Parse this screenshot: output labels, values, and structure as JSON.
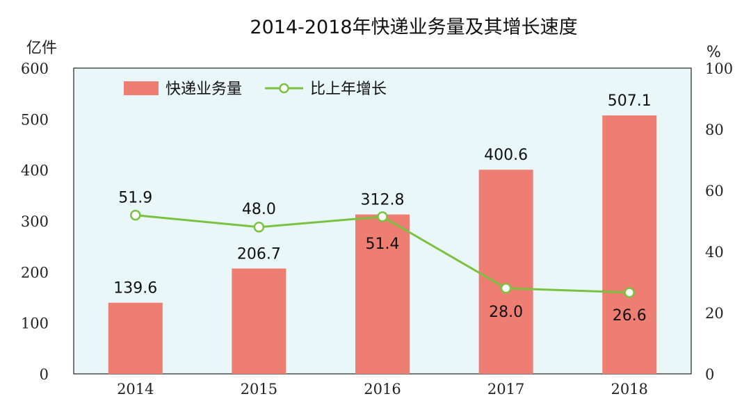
{
  "chart_data": {
    "type": "bar",
    "title": "2014-2018年快递业务量及其增长速度",
    "categories": [
      "2014",
      "2015",
      "2016",
      "2017",
      "2018"
    ],
    "series": [
      {
        "name": "快递业务量",
        "type": "bar",
        "axis": "left",
        "values": [
          139.6,
          206.7,
          312.8,
          400.6,
          507.1
        ],
        "color": "#ee7d72"
      },
      {
        "name": "比上年增长",
        "type": "line",
        "axis": "right",
        "values": [
          51.9,
          48.0,
          51.4,
          28.0,
          26.6
        ],
        "color": "#7bc142"
      }
    ],
    "y_left": {
      "unit": "亿件",
      "min": 0,
      "max": 600,
      "ticks": [
        "0",
        "100",
        "200",
        "300",
        "400",
        "500",
        "600"
      ]
    },
    "y_right": {
      "unit": "%",
      "min": 0,
      "max": 100,
      "ticks": [
        "0",
        "20",
        "40",
        "60",
        "80",
        "100"
      ]
    },
    "bar_labels": [
      "139.6",
      "206.7",
      "312.8",
      "400.6",
      "507.1"
    ],
    "line_labels": [
      "51.9",
      "48.0",
      "51.4",
      "28.0",
      "26.6"
    ],
    "legend": [
      "快递业务量",
      "比上年增长"
    ],
    "legend_position": "top-left",
    "grid": false
  }
}
